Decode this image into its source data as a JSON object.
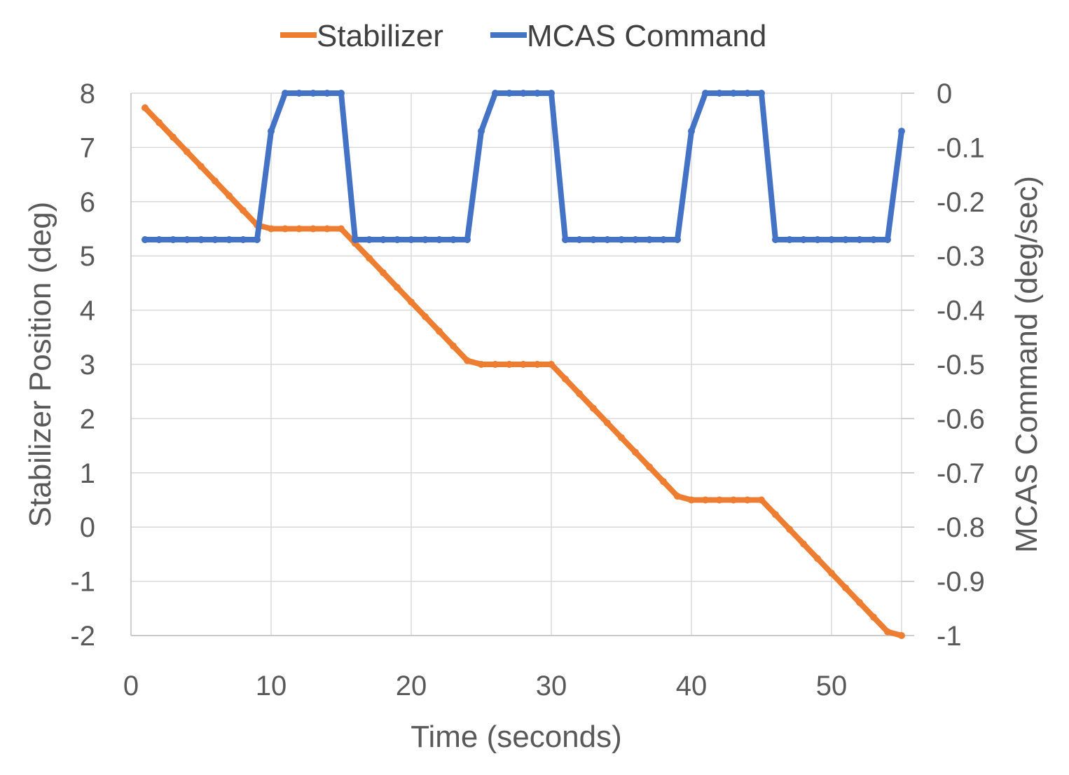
{
  "chart_data": {
    "type": "line",
    "title": "",
    "xlabel": "Time (seconds)",
    "ylabel": "Stabilizer Position (deg)",
    "y2label": "MCAS Command (deg/sec)",
    "xlim": [
      0,
      55
    ],
    "ylim": [
      -2,
      8
    ],
    "y2lim": [
      -1,
      0
    ],
    "x_ticks": [
      0,
      10,
      20,
      30,
      40,
      50
    ],
    "y_ticks": [
      -2,
      -1,
      0,
      1,
      2,
      3,
      4,
      5,
      6,
      7,
      8
    ],
    "y2_ticks": [
      -1,
      -0.9,
      -0.8,
      -0.7,
      -0.6,
      -0.5,
      -0.4,
      -0.3,
      -0.2,
      -0.1,
      0
    ],
    "x_tick_labels": [
      "0",
      "10",
      "20",
      "30",
      "40",
      "50"
    ],
    "y_tick_labels": [
      "-2",
      "-1",
      "0",
      "1",
      "2",
      "3",
      "4",
      "5",
      "6",
      "7",
      "8"
    ],
    "y2_tick_labels": [
      "-1",
      "-0.9",
      "-0.8",
      "-0.7",
      "-0.6",
      "-0.5",
      "-0.4",
      "-0.3",
      "-0.2",
      "-0.1",
      "0"
    ],
    "grid": true,
    "legend_position": "top-center",
    "series": [
      {
        "name": "Stabilizer",
        "color": "#ED7D31",
        "axis": "left",
        "x": [
          1,
          2,
          3,
          4,
          5,
          6,
          7,
          8,
          9,
          10,
          11,
          12,
          13,
          14,
          15,
          16,
          17,
          18,
          19,
          20,
          21,
          22,
          23,
          24,
          25,
          26,
          27,
          28,
          29,
          30,
          31,
          32,
          33,
          34,
          35,
          36,
          37,
          38,
          39,
          40,
          41,
          42,
          43,
          44,
          45,
          46,
          47,
          48,
          49,
          50,
          51,
          52,
          53,
          54,
          55
        ],
        "values": [
          7.73,
          7.46,
          7.19,
          6.92,
          6.65,
          6.38,
          6.11,
          5.84,
          5.57,
          5.5,
          5.5,
          5.5,
          5.5,
          5.5,
          5.5,
          5.23,
          4.96,
          4.69,
          4.42,
          4.15,
          3.88,
          3.61,
          3.34,
          3.07,
          3.0,
          3.0,
          3.0,
          3.0,
          3.0,
          3.0,
          2.73,
          2.46,
          2.19,
          1.92,
          1.65,
          1.38,
          1.11,
          0.84,
          0.57,
          0.5,
          0.5,
          0.5,
          0.5,
          0.5,
          0.5,
          0.23,
          -0.04,
          -0.31,
          -0.58,
          -0.85,
          -1.12,
          -1.39,
          -1.66,
          -1.93,
          -2.0
        ]
      },
      {
        "name": "MCAS Command",
        "color": "#4472C4",
        "axis": "right",
        "x": [
          1,
          2,
          3,
          4,
          5,
          6,
          7,
          8,
          9,
          10,
          11,
          12,
          13,
          14,
          15,
          16,
          17,
          18,
          19,
          20,
          21,
          22,
          23,
          24,
          25,
          26,
          27,
          28,
          29,
          30,
          31,
          32,
          33,
          34,
          35,
          36,
          37,
          38,
          39,
          40,
          41,
          42,
          43,
          44,
          45,
          46,
          47,
          48,
          49,
          50,
          51,
          52,
          53,
          54,
          55
        ],
        "values": [
          -0.27,
          -0.27,
          -0.27,
          -0.27,
          -0.27,
          -0.27,
          -0.27,
          -0.27,
          -0.27,
          -0.07,
          0,
          0,
          0,
          0,
          0,
          -0.27,
          -0.27,
          -0.27,
          -0.27,
          -0.27,
          -0.27,
          -0.27,
          -0.27,
          -0.27,
          -0.07,
          0,
          0,
          0,
          0,
          0,
          -0.27,
          -0.27,
          -0.27,
          -0.27,
          -0.27,
          -0.27,
          -0.27,
          -0.27,
          -0.27,
          -0.07,
          0,
          0,
          0,
          0,
          0,
          -0.27,
          -0.27,
          -0.27,
          -0.27,
          -0.27,
          -0.27,
          -0.27,
          -0.27,
          -0.27,
          -0.07
        ]
      }
    ]
  }
}
